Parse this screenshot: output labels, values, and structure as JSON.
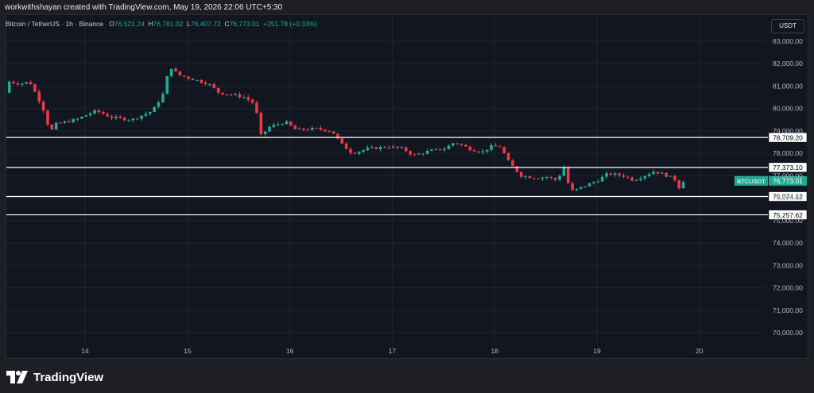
{
  "header": {
    "text": "workwithshayan created with TradingView.com, May 19, 2026 22:06 UTC+5:30"
  },
  "legend": {
    "symbol": "Bitcoin / TetherUS · 1h · Binance",
    "o_label": "O",
    "o_value": "76,521.24",
    "h_label": "H",
    "h_value": "76,781.02",
    "l_label": "L",
    "l_value": "76,407.72",
    "c_label": "C",
    "c_value": "76,773.01",
    "change": "+251.78 (+0.33%)"
  },
  "currency_button": "USDT",
  "footer": {
    "brand": "TradingView"
  },
  "colors": {
    "up": "#22ab94",
    "down": "#f23645",
    "background": "#121621",
    "grid": "#1f2430",
    "axis_text": "#b2b5be",
    "level_line": "#ffffff"
  },
  "chart_data": {
    "type": "candlestick",
    "symbol": "BTCUSDT",
    "interval": "1h",
    "ylim": [
      69600,
      83700
    ],
    "y_ticks": [
      "83,000.00",
      "82,000.00",
      "81,000.00",
      "80,000.00",
      "79,000.00",
      "78,000.00",
      "77,000.00",
      "76,000.00",
      "75,000.00",
      "74,000.00",
      "73,000.00",
      "72,000.00",
      "71,000.00",
      "70,000.00"
    ],
    "x_ticks": [
      {
        "label": "14",
        "day": 14
      },
      {
        "label": "15",
        "day": 15
      },
      {
        "label": "16",
        "day": 16
      },
      {
        "label": "17",
        "day": 17
      },
      {
        "label": "18",
        "day": 18
      },
      {
        "label": "19",
        "day": 19
      },
      {
        "label": "20",
        "day": 20
      }
    ],
    "x_range_days": [
      13.25,
      20.5
    ],
    "grid": true,
    "levels": [
      {
        "value": 78709.2,
        "label": "78,709.20"
      },
      {
        "value": 77373.1,
        "label": "77,373.10"
      },
      {
        "value": 76074.12,
        "label": "76,074.12"
      },
      {
        "value": 75257.62,
        "label": "75,257.62"
      }
    ],
    "last_price": {
      "symbol_label": "BTCUSDT",
      "value": 76773.01,
      "label": "76,773.01"
    },
    "price_path_anchors": [
      [
        13.26,
        80700
      ],
      [
        13.3,
        81200
      ],
      [
        13.4,
        81100
      ],
      [
        13.5,
        81200
      ],
      [
        13.58,
        80500
      ],
      [
        13.65,
        79800
      ],
      [
        13.7,
        78900
      ],
      [
        13.75,
        79300
      ],
      [
        13.85,
        79400
      ],
      [
        13.95,
        79500
      ],
      [
        14.05,
        79700
      ],
      [
        14.15,
        79900
      ],
      [
        14.3,
        79600
      ],
      [
        14.5,
        79500
      ],
      [
        14.6,
        79700
      ],
      [
        14.7,
        79900
      ],
      [
        14.8,
        80600
      ],
      [
        14.87,
        81900
      ],
      [
        14.95,
        81500
      ],
      [
        15.1,
        81300
      ],
      [
        15.25,
        81100
      ],
      [
        15.35,
        80700
      ],
      [
        15.5,
        80600
      ],
      [
        15.6,
        80500
      ],
      [
        15.7,
        80200
      ],
      [
        15.76,
        78800
      ],
      [
        15.85,
        79200
      ],
      [
        16.0,
        79400
      ],
      [
        16.1,
        79050
      ],
      [
        16.3,
        79100
      ],
      [
        16.45,
        79000
      ],
      [
        16.55,
        78400
      ],
      [
        16.65,
        78000
      ],
      [
        16.8,
        78200
      ],
      [
        17.0,
        78300
      ],
      [
        17.15,
        78200
      ],
      [
        17.25,
        77900
      ],
      [
        17.4,
        78100
      ],
      [
        17.55,
        78200
      ],
      [
        17.65,
        78500
      ],
      [
        17.8,
        78200
      ],
      [
        17.92,
        78050
      ],
      [
        18.0,
        78300
      ],
      [
        18.1,
        78300
      ],
      [
        18.18,
        77600
      ],
      [
        18.3,
        77000
      ],
      [
        18.45,
        76900
      ],
      [
        18.55,
        76950
      ],
      [
        18.65,
        76800
      ],
      [
        18.72,
        77400
      ],
      [
        18.78,
        76300
      ],
      [
        18.85,
        76400
      ],
      [
        18.95,
        76600
      ],
      [
        19.05,
        76800
      ],
      [
        19.15,
        77100
      ],
      [
        19.3,
        77000
      ],
      [
        19.4,
        76800
      ],
      [
        19.5,
        77000
      ],
      [
        19.6,
        77200
      ],
      [
        19.7,
        77050
      ],
      [
        19.8,
        76850
      ],
      [
        19.84,
        76450
      ],
      [
        19.87,
        76773
      ]
    ]
  }
}
